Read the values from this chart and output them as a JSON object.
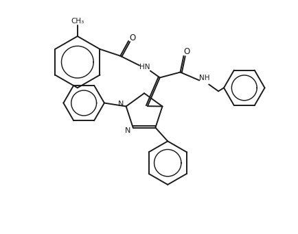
{
  "bg_color": "#ffffff",
  "line_color": "#1a1a1a",
  "line_width": 1.4,
  "fig_width": 4.34,
  "fig_height": 3.42,
  "dpi": 100,
  "xlim": [
    0,
    434
  ],
  "ylim": [
    0,
    342
  ]
}
